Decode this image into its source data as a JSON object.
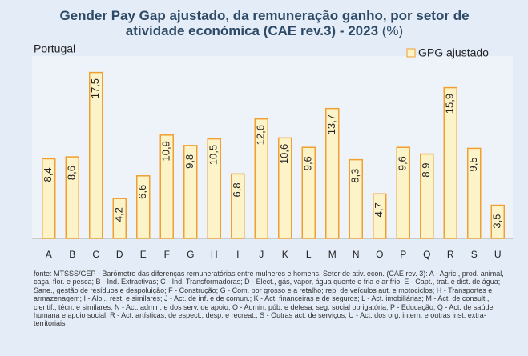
{
  "chart_data": {
    "type": "bar",
    "title": "Gender Pay Gap ajustado, da remuneração ganho, por setor de atividade económica (CAE rev.3) - 2023",
    "unit": "(%)",
    "subtitle": "Portugal",
    "categories": [
      "A",
      "B",
      "C",
      "D",
      "E",
      "F",
      "G",
      "H",
      "I",
      "J",
      "K",
      "L",
      "M",
      "N",
      "O",
      "P",
      "Q",
      "R",
      "S",
      "U"
    ],
    "series": [
      {
        "name": "GPG ajustado",
        "color": "#fdf3c8",
        "edge": "#f0a030",
        "values": [
          8.4,
          8.6,
          17.5,
          4.2,
          6.6,
          10.9,
          9.8,
          10.5,
          6.8,
          12.6,
          10.6,
          9.6,
          13.7,
          8.3,
          4.7,
          9.6,
          8.9,
          15.9,
          9.5,
          3.5
        ],
        "value_labels": [
          "8,4",
          "8,6",
          "17,5",
          "4,2",
          "6,6",
          "10,9",
          "9,8",
          "10,5",
          "6,8",
          "12,6",
          "10,6",
          "9,6",
          "13,7",
          "8,3",
          "4,7",
          "9,6",
          "8,9",
          "15,9",
          "9,5",
          "3,5"
        ]
      }
    ],
    "ylim": [
      0,
      20
    ],
    "note": "fonte: MTSSS/GEP - Barómetro das diferenças remuneratórias entre mulheres e homens.        Setor de ativ. econ. (CAE rev. 3): A - Agric., prod. animal, caça, flor. e pesca; B - Ind. Extractivas; C - Ind. Transformadoras; D - Elect., gás, vapor, água quente e fria e ar frio; E - Capt., trat. e dist. de água; Sane., gestão de resíduos e despoluição; F - Construção; G - Com. por grosso e a retalho; rep. de veículos aut. e motociclos; H - Transportes e armazenagem; I - Aloj., rest. e similares; J - Act. de inf. e de comun.; K - Act. financeiras e de seguros; L - Act. imobiliárias; M - Act. de consult., cientif., técn. e similares; N - Act. admin. e dos serv. de apoio; O - Admin. púb. e defesa; seg. social obrigatória; P - Educação; Q - Act. de saúde humana e apoio social; R - Act. artísticas, de espect., desp. e recreat.; S - Outras act. de serviços; U - Act. dos org. intern. e outras inst. extra-territoriais"
  }
}
